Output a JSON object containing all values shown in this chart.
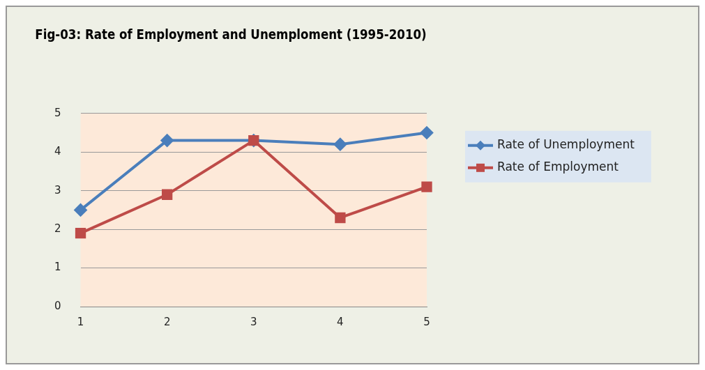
{
  "chart_data": {
    "type": "line",
    "title": "Fig-03: Rate of Employment and Unemploment (1995-2010)",
    "categories": [
      "1",
      "2",
      "3",
      "4",
      "5"
    ],
    "series": [
      {
        "name": "Rate of Unemployment",
        "color": "#4a7ebb",
        "values": [
          2.5,
          4.3,
          4.3,
          4.2,
          4.5
        ],
        "marker": "diamond"
      },
      {
        "name": "Rate of Employment",
        "color": "#be4b48",
        "values": [
          1.9,
          2.9,
          4.3,
          2.3,
          3.1
        ],
        "marker": "square"
      }
    ],
    "ylim": [
      0,
      5
    ],
    "yticks": [
      0,
      1,
      2,
      3,
      4,
      5
    ],
    "grid": "y",
    "legend": "right"
  }
}
